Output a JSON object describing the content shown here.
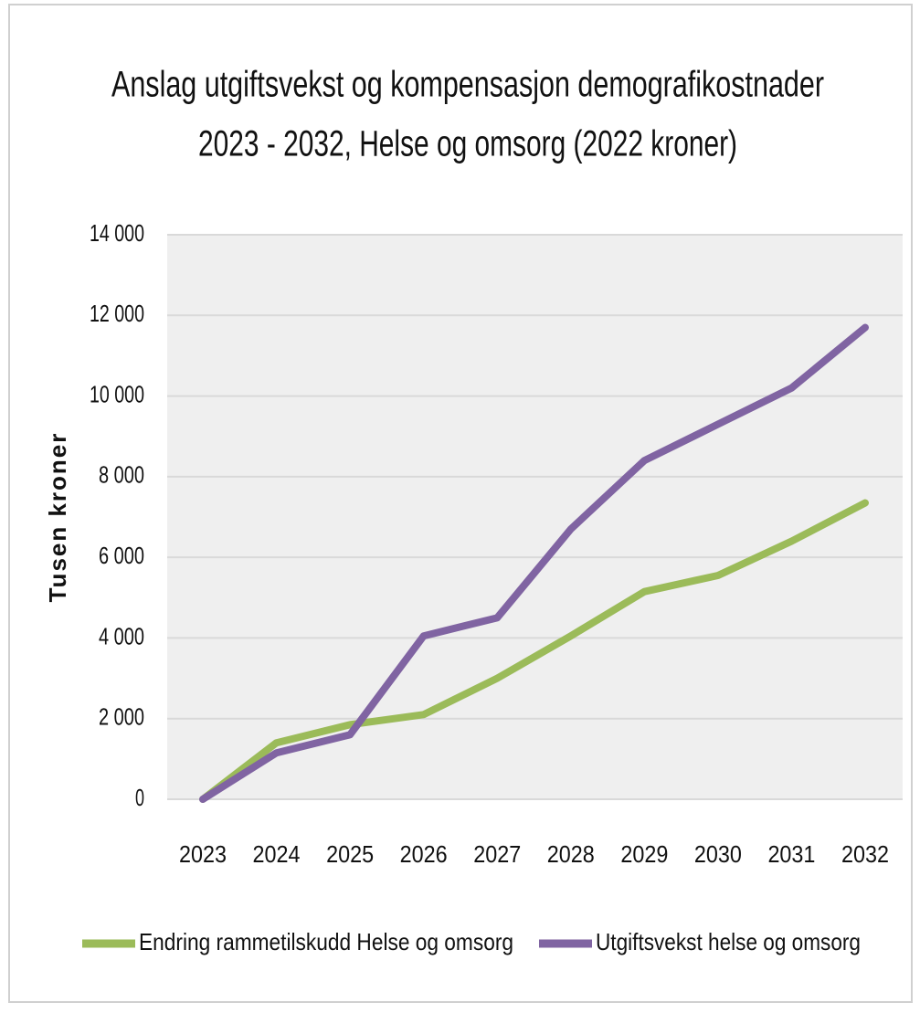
{
  "chart_data": {
    "type": "line",
    "title": [
      "Anslag utgiftsvekst og kompensasjon demografikostnader",
      "2023 - 2032, Helse og omsorg (2022 kroner)"
    ],
    "y_label": "Tusen kroner",
    "categories": [
      "2023",
      "2024",
      "2025",
      "2026",
      "2027",
      "2028",
      "2029",
      "2030",
      "2031",
      "2032"
    ],
    "series": [
      {
        "name": "Endring rammetilskudd Helse og omsorg",
        "color": "#9bbb59",
        "values": [
          0,
          1400,
          1850,
          2100,
          3000,
          4050,
          5150,
          5550,
          6400,
          7350
        ]
      },
      {
        "name": "Utgiftsvekst helse og omsorg",
        "color": "#8064a2",
        "values": [
          0,
          1150,
          1600,
          4050,
          4500,
          6700,
          8400,
          9300,
          10200,
          11700
        ]
      }
    ],
    "ylim": [
      0,
      14000
    ],
    "yticks": [
      0,
      {
        "value": 2000,
        "label": "2 000"
      },
      {
        "value": 4000,
        "label": "4 000"
      },
      {
        "value": 6000,
        "label": "6 000"
      },
      {
        "value": 8000,
        "label": "8 000"
      },
      {
        "value": 10000,
        "label": "10 000"
      },
      {
        "value": 12000,
        "label": "12 000"
      },
      {
        "value": 14000,
        "label": "14 000"
      }
    ],
    "grid": true,
    "legend": "bottom"
  }
}
